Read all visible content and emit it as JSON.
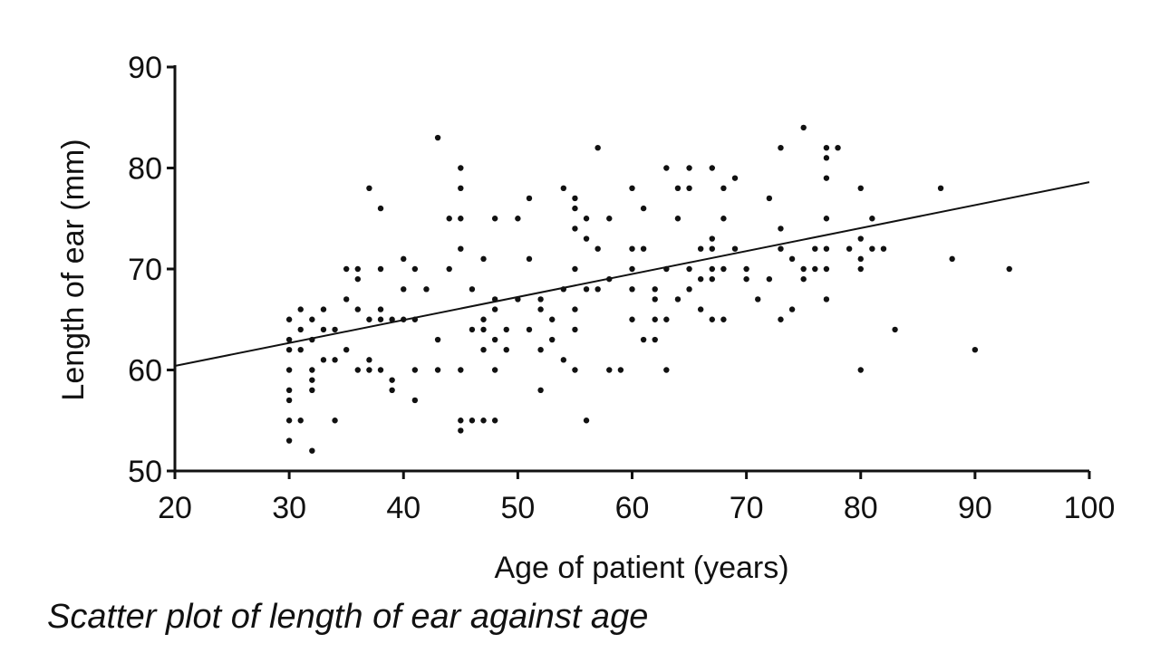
{
  "caption": "Scatter plot of length of ear against age",
  "chart_data": {
    "type": "scatter",
    "xlabel": "Age of patient (years)",
    "ylabel": "Length of ear (mm)",
    "xlim": [
      20,
      100
    ],
    "ylim": [
      50,
      90
    ],
    "xticks": [
      20,
      30,
      40,
      50,
      60,
      70,
      80,
      90,
      100
    ],
    "yticks": [
      50,
      60,
      70,
      80,
      90
    ],
    "grid": false,
    "color": "#111111",
    "trendline": {
      "x": [
        20,
        100
      ],
      "y": [
        60.4,
        78.6
      ]
    },
    "points": [
      [
        30,
        53
      ],
      [
        30,
        55
      ],
      [
        30,
        57
      ],
      [
        30,
        58
      ],
      [
        30,
        60
      ],
      [
        30,
        62
      ],
      [
        30,
        63
      ],
      [
        30,
        65
      ],
      [
        31,
        55
      ],
      [
        31,
        62
      ],
      [
        31,
        64
      ],
      [
        31,
        66
      ],
      [
        32,
        52
      ],
      [
        32,
        58
      ],
      [
        32,
        59
      ],
      [
        32,
        60
      ],
      [
        32,
        63
      ],
      [
        32,
        65
      ],
      [
        33,
        61
      ],
      [
        33,
        64
      ],
      [
        33,
        66
      ],
      [
        34,
        55
      ],
      [
        34,
        61
      ],
      [
        34,
        64
      ],
      [
        35,
        62
      ],
      [
        35,
        67
      ],
      [
        35,
        70
      ],
      [
        36,
        60
      ],
      [
        36,
        66
      ],
      [
        36,
        70
      ],
      [
        36,
        69
      ],
      [
        37,
        78
      ],
      [
        37,
        61
      ],
      [
        37,
        60
      ],
      [
        37,
        65
      ],
      [
        38,
        76
      ],
      [
        38,
        70
      ],
      [
        38,
        66
      ],
      [
        38,
        60
      ],
      [
        38,
        65
      ],
      [
        39,
        65
      ],
      [
        39,
        59
      ],
      [
        39,
        58
      ],
      [
        40,
        71
      ],
      [
        40,
        68
      ],
      [
        40,
        65
      ],
      [
        41,
        70
      ],
      [
        41,
        65
      ],
      [
        41,
        60
      ],
      [
        41,
        57
      ],
      [
        42,
        68
      ],
      [
        43,
        83
      ],
      [
        43,
        63
      ],
      [
        43,
        60
      ],
      [
        44,
        75
      ],
      [
        44,
        70
      ],
      [
        45,
        80
      ],
      [
        45,
        78
      ],
      [
        45,
        75
      ],
      [
        45,
        72
      ],
      [
        45,
        60
      ],
      [
        45,
        55
      ],
      [
        45,
        54
      ],
      [
        46,
        68
      ],
      [
        46,
        64
      ],
      [
        46,
        55
      ],
      [
        47,
        71
      ],
      [
        47,
        65
      ],
      [
        47,
        64
      ],
      [
        47,
        62
      ],
      [
        47,
        55
      ],
      [
        48,
        75
      ],
      [
        48,
        67
      ],
      [
        48,
        66
      ],
      [
        48,
        63
      ],
      [
        48,
        60
      ],
      [
        48,
        55
      ],
      [
        49,
        64
      ],
      [
        49,
        62
      ],
      [
        50,
        75
      ],
      [
        50,
        67
      ],
      [
        51,
        77
      ],
      [
        51,
        71
      ],
      [
        51,
        64
      ],
      [
        52,
        67
      ],
      [
        52,
        66
      ],
      [
        52,
        62
      ],
      [
        52,
        58
      ],
      [
        53,
        65
      ],
      [
        53,
        63
      ],
      [
        54,
        78
      ],
      [
        54,
        68
      ],
      [
        54,
        61
      ],
      [
        55,
        77
      ],
      [
        55,
        76
      ],
      [
        55,
        74
      ],
      [
        55,
        70
      ],
      [
        55,
        66
      ],
      [
        55,
        64
      ],
      [
        55,
        60
      ],
      [
        56,
        75
      ],
      [
        56,
        73
      ],
      [
        56,
        68
      ],
      [
        56,
        55
      ],
      [
        57,
        82
      ],
      [
        57,
        72
      ],
      [
        57,
        68
      ],
      [
        58,
        75
      ],
      [
        58,
        69
      ],
      [
        58,
        60
      ],
      [
        59,
        60
      ],
      [
        60,
        78
      ],
      [
        60,
        72
      ],
      [
        60,
        70
      ],
      [
        60,
        68
      ],
      [
        60,
        65
      ],
      [
        61,
        76
      ],
      [
        61,
        72
      ],
      [
        61,
        63
      ],
      [
        62,
        68
      ],
      [
        62,
        67
      ],
      [
        62,
        65
      ],
      [
        62,
        63
      ],
      [
        63,
        80
      ],
      [
        63,
        70
      ],
      [
        63,
        65
      ],
      [
        63,
        60
      ],
      [
        64,
        78
      ],
      [
        64,
        75
      ],
      [
        64,
        67
      ],
      [
        65,
        80
      ],
      [
        65,
        78
      ],
      [
        65,
        70
      ],
      [
        65,
        68
      ],
      [
        66,
        72
      ],
      [
        66,
        69
      ],
      [
        66,
        66
      ],
      [
        67,
        80
      ],
      [
        67,
        73
      ],
      [
        67,
        72
      ],
      [
        67,
        70
      ],
      [
        67,
        69
      ],
      [
        67,
        65
      ],
      [
        68,
        78
      ],
      [
        68,
        75
      ],
      [
        68,
        70
      ],
      [
        68,
        65
      ],
      [
        69,
        79
      ],
      [
        69,
        72
      ],
      [
        70,
        70
      ],
      [
        70,
        69
      ],
      [
        71,
        67
      ],
      [
        72,
        77
      ],
      [
        72,
        69
      ],
      [
        73,
        82
      ],
      [
        73,
        74
      ],
      [
        73,
        72
      ],
      [
        73,
        65
      ],
      [
        74,
        71
      ],
      [
        74,
        66
      ],
      [
        75,
        84
      ],
      [
        75,
        70
      ],
      [
        75,
        69
      ],
      [
        76,
        70
      ],
      [
        76,
        72
      ],
      [
        77,
        82
      ],
      [
        77,
        81
      ],
      [
        77,
        79
      ],
      [
        77,
        75
      ],
      [
        77,
        72
      ],
      [
        77,
        70
      ],
      [
        77,
        67
      ],
      [
        78,
        82
      ],
      [
        79,
        72
      ],
      [
        80,
        78
      ],
      [
        80,
        73
      ],
      [
        80,
        71
      ],
      [
        80,
        70
      ],
      [
        80,
        60
      ],
      [
        81,
        75
      ],
      [
        81,
        72
      ],
      [
        82,
        72
      ],
      [
        83,
        64
      ],
      [
        87,
        78
      ],
      [
        88,
        71
      ],
      [
        90,
        62
      ],
      [
        93,
        70
      ]
    ]
  }
}
